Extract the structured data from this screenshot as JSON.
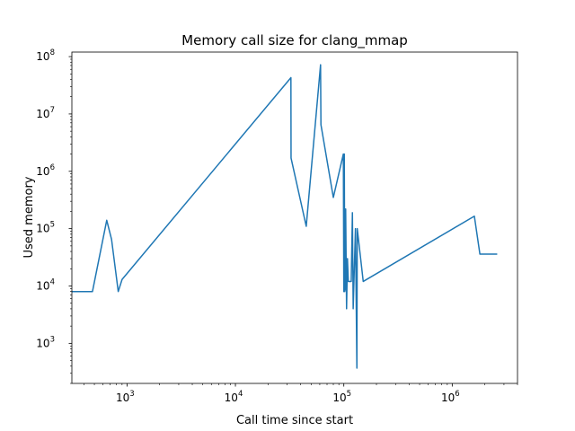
{
  "chart_data": {
    "type": "line",
    "title": "Memory call size for clang_mmap",
    "xlabel": "Call time since start",
    "ylabel": "Used memory",
    "xscale": "log",
    "yscale": "log",
    "xlim": [
      310,
      4000000
    ],
    "ylim": [
      200,
      120000000
    ],
    "grid": false,
    "line_color": "#1f77b4",
    "x_ticks": [
      {
        "value": 1000,
        "base": "10",
        "exp": "3"
      },
      {
        "value": 10000,
        "base": "10",
        "exp": "4"
      },
      {
        "value": 100000,
        "base": "10",
        "exp": "5"
      },
      {
        "value": 1000000,
        "base": "10",
        "exp": "6"
      }
    ],
    "y_ticks": [
      {
        "value": 1000,
        "base": "10",
        "exp": "3"
      },
      {
        "value": 10000,
        "base": "10",
        "exp": "4"
      },
      {
        "value": 100000,
        "base": "10",
        "exp": "5"
      },
      {
        "value": 1000000,
        "base": "10",
        "exp": "6"
      },
      {
        "value": 10000000,
        "base": "10",
        "exp": "7"
      },
      {
        "value": 100000000,
        "base": "10",
        "exp": "8"
      }
    ],
    "series": [
      {
        "x": [
          310,
          480,
          650,
          720,
          830,
          900,
          32500,
          32600,
          45000,
          61000,
          61500,
          80000,
          99000,
          100000,
          101000,
          102000,
          103000,
          104000,
          106000,
          108000,
          110000,
          117000,
          120000,
          122000,
          128000,
          132000,
          133000,
          151000,
          1600000,
          1800000,
          2600000
        ],
        "y": [
          8000,
          8000,
          140000,
          65000,
          8000,
          13000,
          43000000,
          1700000,
          110000,
          72000000,
          6500000,
          350000,
          2000000,
          8000,
          2000000,
          8000,
          9000,
          220000,
          4000,
          30000,
          12000,
          12000,
          190000,
          4000,
          100000,
          370,
          100000,
          12000,
          165000,
          36000,
          36000
        ]
      }
    ]
  }
}
